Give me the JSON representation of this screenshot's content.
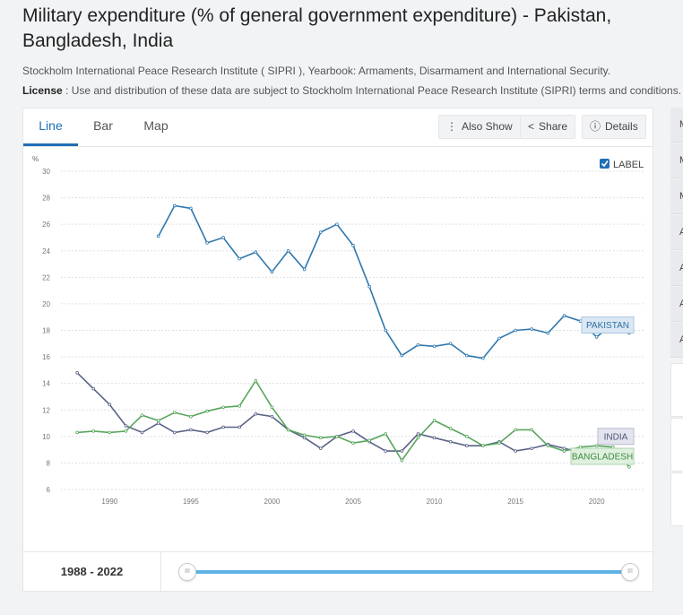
{
  "header": {
    "title": "Military expenditure (% of general government expenditure) - Pakistan, Bangladesh, India",
    "source": "Stockholm International Peace Research Institute ( SIPRI ), Yearbook: Armaments, Disarmament and International Security.",
    "license_label": "License",
    "license_text": " : Use and distribution of these data are subject to Stockholm International Peace Research Institute (SIPRI) terms and conditions."
  },
  "tabs": [
    {
      "label": "Line",
      "active": true
    },
    {
      "label": "Bar",
      "active": false
    },
    {
      "label": "Map",
      "active": false
    }
  ],
  "toolbar": {
    "also_show": "Also Show",
    "share": "Share",
    "details": "Details"
  },
  "label_toggle": {
    "text": "LABEL",
    "checked": true
  },
  "range": {
    "label": "1988 - 2022",
    "start": 1988,
    "end": 2022
  },
  "side_items": [
    "M",
    "M",
    "M",
    "A",
    "A",
    "A",
    "A"
  ],
  "colors": {
    "pakistan": "#2f78ae",
    "india": "#5a6386",
    "bangladesh": "#58a65c",
    "accent": "#1f6fb5"
  },
  "chart_data": {
    "type": "line",
    "ylabel": "%",
    "ylim": [
      6,
      30
    ],
    "yticks": [
      6,
      8,
      10,
      12,
      14,
      16,
      18,
      20,
      22,
      24,
      26,
      28,
      30
    ],
    "xlim": [
      1987,
      2023
    ],
    "xticks": [
      1990,
      1995,
      2000,
      2005,
      2010,
      2015,
      2020
    ],
    "grid": true,
    "legend": "end-labels",
    "series": [
      {
        "name": "PAKISTAN",
        "color": "#2f78ae",
        "x": [
          1993,
          1994,
          1995,
          1996,
          1997,
          1998,
          1999,
          2000,
          2001,
          2002,
          2003,
          2004,
          2005,
          2006,
          2007,
          2008,
          2009,
          2010,
          2011,
          2012,
          2013,
          2014,
          2015,
          2016,
          2017,
          2018,
          2019,
          2020,
          2021,
          2022
        ],
        "y": [
          25.1,
          27.4,
          27.2,
          24.6,
          25.0,
          23.4,
          23.9,
          22.4,
          24.0,
          22.6,
          25.4,
          26.0,
          24.4,
          21.3,
          18.0,
          16.1,
          16.9,
          16.8,
          17.0,
          16.1,
          15.9,
          17.4,
          18.0,
          18.1,
          17.8,
          19.1,
          18.7,
          17.5,
          18.5,
          17.8
        ]
      },
      {
        "name": "INDIA",
        "color": "#5a6386",
        "x": [
          1988,
          1989,
          1990,
          1991,
          1992,
          1993,
          1994,
          1995,
          1996,
          1997,
          1998,
          1999,
          2000,
          2001,
          2002,
          2003,
          2004,
          2005,
          2006,
          2007,
          2008,
          2009,
          2010,
          2011,
          2012,
          2013,
          2014,
          2015,
          2016,
          2017,
          2018,
          2019,
          2020,
          2021,
          2022
        ],
        "y": [
          14.8,
          13.6,
          12.4,
          10.8,
          10.3,
          11.0,
          10.3,
          10.5,
          10.3,
          10.7,
          10.7,
          11.7,
          11.5,
          10.5,
          9.9,
          9.1,
          10.0,
          10.4,
          9.6,
          8.9,
          8.9,
          10.2,
          9.9,
          9.6,
          9.3,
          9.3,
          9.6,
          8.9,
          9.1,
          9.4,
          9.1,
          8.8,
          8.4,
          8.1,
          8.1
        ]
      },
      {
        "name": "BANGLADESH",
        "color": "#58a65c",
        "x": [
          1988,
          1989,
          1990,
          1991,
          1992,
          1993,
          1994,
          1995,
          1996,
          1997,
          1998,
          1999,
          2000,
          2001,
          2002,
          2003,
          2004,
          2005,
          2006,
          2007,
          2008,
          2009,
          2010,
          2011,
          2012,
          2013,
          2014,
          2015,
          2016,
          2017,
          2018,
          2019,
          2020,
          2021,
          2022
        ],
        "y": [
          10.3,
          10.4,
          10.3,
          10.4,
          11.6,
          11.2,
          11.8,
          11.5,
          11.9,
          12.2,
          12.3,
          14.2,
          12.2,
          10.5,
          10.1,
          9.9,
          10.0,
          9.5,
          9.7,
          10.2,
          8.2,
          9.9,
          11.2,
          10.6,
          10.0,
          9.3,
          9.5,
          10.5,
          10.5,
          9.3,
          8.9,
          9.2,
          9.3,
          9.2,
          7.7
        ]
      }
    ]
  }
}
